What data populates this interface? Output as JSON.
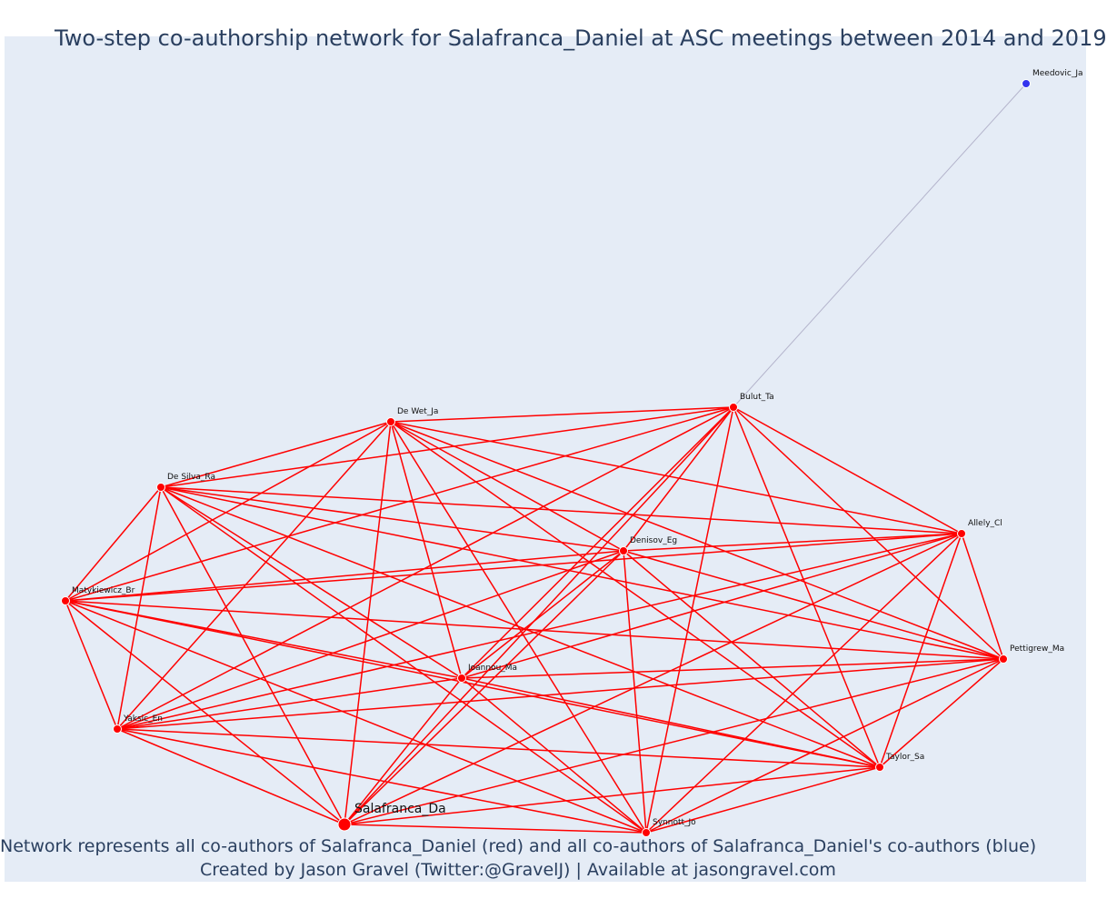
{
  "title": "Two-step co-authorship network for Salafranca_Daniel at ASC meetings between 2014 and 2019",
  "caption": {
    "line1": "Network represents all co-authors of Salafranca_Daniel (red) and all co-authors of Salafranca_Daniel's co-authors (blue)",
    "line2": "Created by Jason Gravel (Twitter:@GravelJ) | Available at jasongravel.com"
  },
  "colors": {
    "background": "#e5ecf6",
    "first_step": "#ff0000",
    "second_step": "#3333ee",
    "second_step_edge": "#b4b4cc",
    "text": "#2a3f5f"
  },
  "nodes": [
    {
      "id": "Salafranca_Da",
      "group": "ego"
    },
    {
      "id": "Synnott_Jo",
      "group": "coauthor"
    },
    {
      "id": "Taylor_Sa",
      "group": "coauthor"
    },
    {
      "id": "Pettigrew_Ma",
      "group": "coauthor"
    },
    {
      "id": "Allely_Cl",
      "group": "coauthor"
    },
    {
      "id": "Bulut_Ta",
      "group": "coauthor"
    },
    {
      "id": "De Wet_Ja",
      "group": "coauthor"
    },
    {
      "id": "De Silva_Ra",
      "group": "coauthor"
    },
    {
      "id": "Matykiewicz_Br",
      "group": "coauthor"
    },
    {
      "id": "Yaksic_En",
      "group": "coauthor"
    },
    {
      "id": "Ioannou_Ma",
      "group": "coauthor"
    },
    {
      "id": "Denisov_Eg",
      "group": "coauthor"
    },
    {
      "id": "Meedovic_Ja",
      "group": "second"
    }
  ],
  "edges": {
    "complete_among_first_step": true,
    "extra": [
      [
        "Bulut_Ta",
        "Meedovic_Ja"
      ]
    ]
  }
}
